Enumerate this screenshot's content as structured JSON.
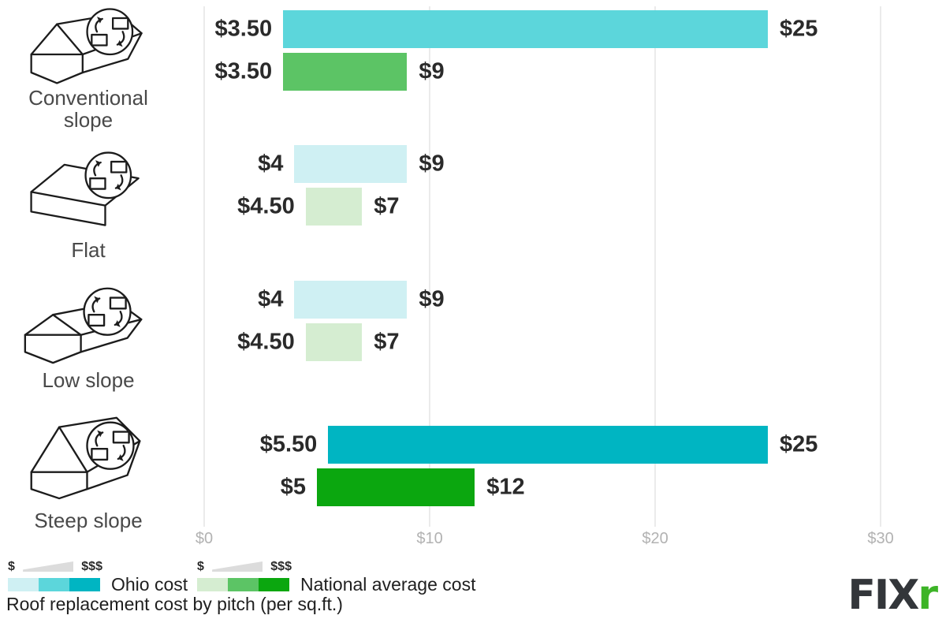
{
  "chart_data": {
    "type": "bar",
    "orientation": "horizontal-range",
    "title": "Roof replacement cost by pitch (per sq.ft.)",
    "unit": "$ per sq.ft.",
    "grid": true,
    "legend_position": "bottom-left",
    "xlim": [
      0,
      32.9
    ],
    "x_ticks": [
      {
        "value": 0,
        "label": "$0"
      },
      {
        "value": 10,
        "label": "$10"
      },
      {
        "value": 20,
        "label": "$20"
      },
      {
        "value": 30,
        "label": "$30"
      }
    ],
    "series_names": [
      "Ohio cost",
      "National average cost"
    ],
    "rows": [
      {
        "category": "Conventional slope",
        "icon": "conventional-slope-roof-icon",
        "ohio": {
          "min": 3.5,
          "max": 25,
          "min_label": "$3.50",
          "max_label": "$25",
          "color": "#5cd6db"
        },
        "national": {
          "min": 3.5,
          "max": 9,
          "min_label": "$3.50",
          "max_label": "$9",
          "color": "#5cc465"
        }
      },
      {
        "category": "Flat",
        "icon": "flat-roof-icon",
        "ohio": {
          "min": 4,
          "max": 9,
          "min_label": "$4",
          "max_label": "$9",
          "color": "#cff0f3"
        },
        "national": {
          "min": 4.5,
          "max": 7,
          "min_label": "$4.50",
          "max_label": "$7",
          "color": "#d5edd1"
        }
      },
      {
        "category": "Low slope",
        "icon": "low-slope-roof-icon",
        "ohio": {
          "min": 4,
          "max": 9,
          "min_label": "$4",
          "max_label": "$9",
          "color": "#cff0f3"
        },
        "national": {
          "min": 4.5,
          "max": 7,
          "min_label": "$4.50",
          "max_label": "$7",
          "color": "#d5edd1"
        }
      },
      {
        "category": "Steep slope",
        "icon": "steep-slope-roof-icon",
        "ohio": {
          "min": 5.5,
          "max": 25,
          "min_label": "$5.50",
          "max_label": "$25",
          "color": "#00b5c2"
        },
        "national": {
          "min": 5,
          "max": 12,
          "min_label": "$5",
          "max_label": "$12",
          "color": "#0ba70f"
        }
      }
    ]
  },
  "legend": {
    "ohio": {
      "label": "Ohio cost",
      "low_symbol": "$",
      "high_symbol": "$$$",
      "swatches": [
        "#cff0f3",
        "#5cd6db",
        "#00b5c2"
      ]
    },
    "national": {
      "label": "National average cost",
      "low_symbol": "$",
      "high_symbol": "$$$",
      "swatches": [
        "#d5edd1",
        "#5cc465",
        "#0ba70f"
      ]
    }
  },
  "footer": {
    "caption": "Roof replacement cost by pitch (per sq.ft.)"
  },
  "brand": {
    "logo_text_dark": "FIX",
    "logo_text_green": "r",
    "dark_color": "#33363a",
    "green_color": "#3db427"
  }
}
